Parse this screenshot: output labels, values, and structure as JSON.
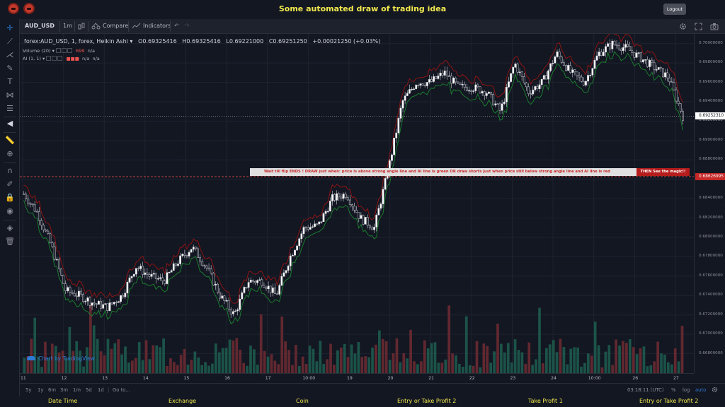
{
  "app": {
    "title": "Some automated draw of trading idea",
    "logout_label": "Logout"
  },
  "toolbar": {
    "symbol": "AUD_USD",
    "interval": "1m",
    "compare_label": "Compare",
    "indicators_label": "Indicators"
  },
  "legend": {
    "main": "forex:AUD_USD, 1, forex, Heikin Ashi",
    "open": "O0.69325416",
    "high": "H0.69325416",
    "low": "L0.69221000",
    "close": "C0.69251250",
    "change": "+0.00021250 (+0.03%)",
    "volume_label": "Volume (20)",
    "volume_value": "699",
    "volume_na": "n/a",
    "ai_label": "AI (1, 1)",
    "ai_value_1": "n/a",
    "ai_value_2": "n/a"
  },
  "banner": {
    "text": "Wait till flip ENDS   !    DRAW just when:  price is above strong angle line and AI line is green          OR          draw shorts just when price still below strong angle line and AI line is red",
    "magic": "THEN See the magic!!"
  },
  "watermark": "Chart by TradingView",
  "price_axis": {
    "ticks": [
      "0.70000000",
      "0.69800000",
      "0.69600000",
      "0.69400000",
      "0.69200000",
      "0.69000000",
      "0.68800000",
      "0.68600000",
      "0.68400000",
      "0.68200000",
      "0.68000000",
      "0.67800000",
      "0.67600000",
      "0.67400000",
      "0.67200000",
      "0.67000000",
      "0.66800000"
    ],
    "current_price": "0.69252310",
    "alert_price": "0.68626995"
  },
  "time_axis": {
    "ticks": [
      "11",
      "12",
      "13",
      "14",
      "15",
      "16",
      "17",
      "10:00",
      "19",
      "20",
      "21",
      "22",
      "23",
      "24",
      "10:00",
      "26",
      "27"
    ]
  },
  "bottom": {
    "ranges": [
      "5y",
      "1y",
      "6m",
      "3m",
      "1m",
      "5d",
      "1d"
    ],
    "goto": "Go to...",
    "clock": "03:18:11 (UTC)",
    "percent": "%",
    "log": "log",
    "auto": "auto"
  },
  "footer": {
    "labels": [
      "Date Time",
      "Exchange",
      "Coin",
      "Entry or Take Profit 2",
      "Take Profit 1",
      "Entry or Take Profit 2"
    ]
  },
  "colors": {
    "background": "#131722",
    "up": "#26a69a",
    "down": "#ef5350",
    "accent_yellow": "#f2e94e"
  },
  "chart_data": {
    "type": "candlestick",
    "style": "Heikin Ashi",
    "symbol": "forex:AUD_USD",
    "interval": "1",
    "ylim": [
      0.666,
      0.701
    ],
    "y_ticks": [
      0.7,
      0.698,
      0.696,
      0.694,
      0.692,
      0.69,
      0.688,
      0.686,
      0.684,
      0.682,
      0.68,
      0.678,
      0.676,
      0.674,
      0.672,
      0.67,
      0.668
    ],
    "x_ticks": [
      "11",
      "12",
      "13",
      "14",
      "15",
      "16",
      "17",
      "10:00",
      "19",
      "20",
      "21",
      "22",
      "23",
      "24",
      "10:00",
      "26",
      "27"
    ],
    "price_path": [
      0.6845,
      0.6825,
      0.679,
      0.6745,
      0.674,
      0.6732,
      0.6728,
      0.674,
      0.677,
      0.676,
      0.6755,
      0.6775,
      0.679,
      0.677,
      0.674,
      0.672,
      0.6755,
      0.6755,
      0.674,
      0.678,
      0.681,
      0.6812,
      0.684,
      0.6845,
      0.682,
      0.681,
      0.687,
      0.694,
      0.696,
      0.696,
      0.697,
      0.6955,
      0.6955,
      0.695,
      0.693,
      0.698,
      0.695,
      0.696,
      0.699,
      0.697,
      0.696,
      0.699,
      0.7,
      0.6995,
      0.6985,
      0.6975,
      0.6965,
      0.6925
    ],
    "volume": {
      "max_label": "699"
    },
    "indicator_lines": [
      {
        "name": "AI (1, 1)",
        "colors": [
          "#1b7a2e",
          "#8b1414"
        ]
      }
    ],
    "current_price": 0.6925231,
    "alert_level": 0.68626995
  }
}
